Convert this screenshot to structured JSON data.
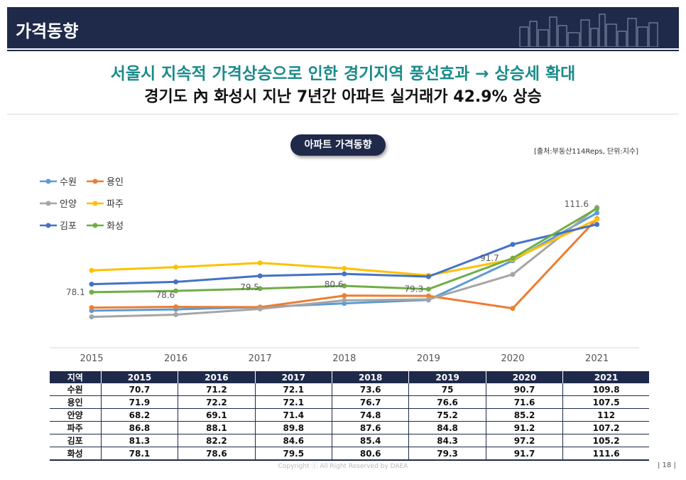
{
  "header": {
    "title": "가격동향"
  },
  "headline": {
    "line1": "서울시 지속적 가격상승으로 인한 경기지역 풍선효과 → 상승세 확대",
    "line2": "경기도 內 화성시 지난 7년간 아파트 실거래가 42.9% 상승"
  },
  "chart_title": "아파트 가격동향",
  "source_note": "[출처:부동산114Reps, 단위:지수]",
  "chart_data": {
    "type": "line",
    "x": [
      "2015",
      "2016",
      "2017",
      "2018",
      "2019",
      "2020",
      "2021"
    ],
    "series": [
      {
        "name": "수원",
        "color": "#5b9bd5",
        "values": [
          70.7,
          71.2,
          72.1,
          73.6,
          75,
          90.7,
          109.8
        ]
      },
      {
        "name": "용인",
        "color": "#ed7d31",
        "values": [
          71.9,
          72.2,
          72.1,
          76.7,
          76.6,
          71.6,
          107.5
        ]
      },
      {
        "name": "안양",
        "color": "#a5a5a5",
        "values": [
          68.2,
          69.1,
          71.4,
          74.8,
          75.2,
          85.2,
          112
        ]
      },
      {
        "name": "파주",
        "color": "#ffc000",
        "values": [
          86.8,
          88.1,
          89.8,
          87.6,
          84.8,
          91.2,
          107.2
        ]
      },
      {
        "name": "김포",
        "color": "#4472c4",
        "values": [
          81.3,
          82.2,
          84.6,
          85.4,
          84.3,
          97.2,
          105.2
        ]
      },
      {
        "name": "화성",
        "color": "#70ad47",
        "values": [
          78.1,
          78.6,
          79.5,
          80.6,
          79.3,
          91.7,
          111.6
        ]
      }
    ],
    "labelled_series": "화성",
    "data_labels": [
      "78.1",
      "78.6",
      "79.5",
      "80.6",
      "79.3",
      "91.7",
      "111.6"
    ],
    "ylim": [
      55,
      125
    ]
  },
  "table": {
    "headers": [
      "지역",
      "2015",
      "2016",
      "2017",
      "2018",
      "2019",
      "2020",
      "2021"
    ],
    "rows": [
      [
        "수원",
        "70.7",
        "71.2",
        "72.1",
        "73.6",
        "75",
        "90.7",
        "109.8"
      ],
      [
        "용인",
        "71.9",
        "72.2",
        "72.1",
        "76.7",
        "76.6",
        "71.6",
        "107.5"
      ],
      [
        "안양",
        "68.2",
        "69.1",
        "71.4",
        "74.8",
        "75.2",
        "85.2",
        "112"
      ],
      [
        "파주",
        "86.8",
        "88.1",
        "89.8",
        "87.6",
        "84.8",
        "91.2",
        "107.2"
      ],
      [
        "김포",
        "81.3",
        "82.2",
        "84.6",
        "85.4",
        "84.3",
        "97.2",
        "105.2"
      ],
      [
        "화성",
        "78.1",
        "78.6",
        "79.5",
        "80.6",
        "79.3",
        "91.7",
        "111.6"
      ]
    ]
  },
  "footer": {
    "copyright": "Copyright ⓒ All Right Reserved by DAEA",
    "page": "| 18 |"
  }
}
